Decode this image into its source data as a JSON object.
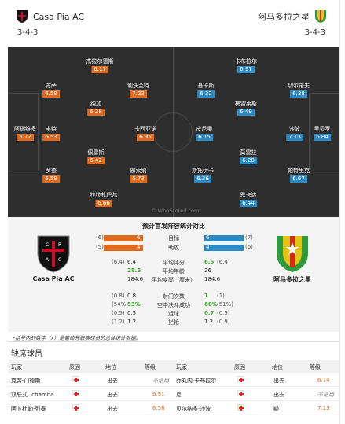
{
  "home": {
    "name": "Casa Pia AC",
    "formation": "3-4-3"
  },
  "away": {
    "name": "阿马多拉之星",
    "formation": "3-4-3"
  },
  "colors": {
    "rating_home": "#e1691b",
    "rating_away": "#2a8ac6",
    "pitch": "#2e2e2e",
    "good": "#3ca62c"
  },
  "pitch": {
    "watermark": "© WhoScored.com",
    "home_players": [
      {
        "name": "杰拉尔德斯",
        "rating": "6.17"
      },
      {
        "name": "苏萨",
        "rating": "6.59"
      },
      {
        "name": "利沃兰特",
        "rating": "7.23"
      },
      {
        "name": "纳加",
        "rating": "6.28"
      },
      {
        "name": "阿瑙维多",
        "rating": "5.72"
      },
      {
        "name": "丰特",
        "rating": "6.53"
      },
      {
        "name": "卡西亚诺",
        "rating": "6.95"
      },
      {
        "name": "佩雷斯",
        "rating": "6.42"
      },
      {
        "name": "罗查",
        "rating": "6.59"
      },
      {
        "name": "恩索纳",
        "rating": "5.73"
      },
      {
        "name": "拉拉扎巴尔",
        "rating": "6.66"
      }
    ],
    "away_players": [
      {
        "name": "卡布拉尔",
        "rating": "6.97"
      },
      {
        "name": "基卡斯",
        "rating": "6.32"
      },
      {
        "name": "切尔诺夫",
        "rating": "6.38"
      },
      {
        "name": "梅雷莱斯",
        "rating": "6.49"
      },
      {
        "name": "皮尼奥",
        "rating": "6.15"
      },
      {
        "name": "沙波",
        "rating": "7.13"
      },
      {
        "name": "里贝罗",
        "rating": "6.84"
      },
      {
        "name": "莫雷拉",
        "rating": "6.28"
      },
      {
        "name": "斯托伊卡",
        "rating": "6.36"
      },
      {
        "name": "帕特里克",
        "rating": "6.67"
      },
      {
        "name": "恩卡达",
        "rating": "6.44"
      }
    ]
  },
  "stats": {
    "title": "预计首发阵容统计对比",
    "home_name": "Casa Pia AC",
    "away_name": "阿马多拉之星",
    "goals": {
      "label": "目标",
      "home": "6",
      "away": "6",
      "home_paren": "(6)",
      "away_paren": "(7)"
    },
    "assists": {
      "label": "助攻",
      "home": "4",
      "away": "4",
      "home_paren": "(5)",
      "away_paren": "(6)"
    },
    "rows1": [
      {
        "label": "平均评分",
        "home": "6.4",
        "home_paren": "(6.4)",
        "away": "6.5",
        "away_paren": "(6.4)"
      },
      {
        "label": "平均年龄",
        "home": "28.5",
        "home_paren": "",
        "away": "26",
        "away_paren": ""
      },
      {
        "label": "平均身高（厘米）",
        "home": "184.6",
        "home_paren": "",
        "away": "184.6",
        "away_paren": ""
      }
    ],
    "rows2": [
      {
        "label": "射门次数",
        "home": "0.8",
        "home_paren": "(0.8)",
        "away": "1",
        "away_paren": "(1)"
      },
      {
        "label": "空中决斗成功",
        "home": "53%",
        "home_paren": "(54%)",
        "away": "60%",
        "away_paren": "(51%)"
      },
      {
        "label": "运球",
        "home": "0.5",
        "home_paren": "(0.5)",
        "away": "0.7",
        "away_paren": "(0.5)"
      },
      {
        "label": "拦抢",
        "home": "1.2",
        "home_paren": "(1.2)",
        "away": "1.2",
        "away_paren": "(0.9)"
      }
    ]
  },
  "note": "*括号内的数字（x）是葡萄牙联赛球员的总体统计数据。",
  "missing": {
    "title": "缺席球员",
    "headers": {
      "player": "玩家",
      "reason": "原因",
      "position": "地位",
      "level": "等级"
    },
    "home": [
      {
        "player": "克劳-门德斯",
        "status": "出去",
        "level": "不适用"
      },
      {
        "player": "双联式 Tchamba",
        "status": "出去",
        "level": "6.91"
      },
      {
        "player": "阿卜杜勒-列泰",
        "status": "出去",
        "level": "6.58"
      }
    ],
    "away": [
      {
        "player": "乔丸内·卡布拉尔",
        "status": "出去",
        "level": "6.74"
      },
      {
        "player": "尼",
        "status": "出去",
        "level": "不适用"
      },
      {
        "player": "贝尔纳多·沙波",
        "status": "疑",
        "level": "7.13"
      }
    ]
  }
}
